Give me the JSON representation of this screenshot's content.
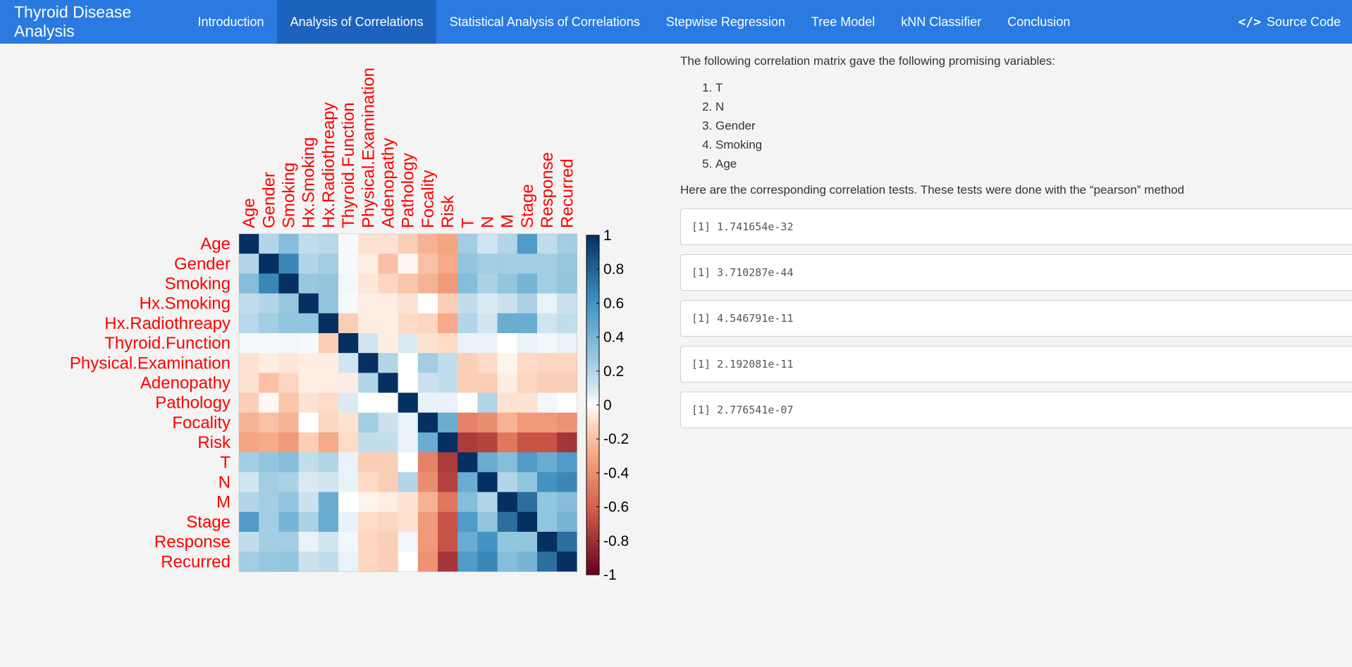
{
  "navbar": {
    "brand": "Thyroid Disease Analysis",
    "items": [
      {
        "label": "Introduction",
        "active": false
      },
      {
        "label": "Analysis of Correlations",
        "active": true
      },
      {
        "label": "Statistical Analysis of Correlations",
        "active": false
      },
      {
        "label": "Stepwise Regression",
        "active": false
      },
      {
        "label": "Tree Model",
        "active": false
      },
      {
        "label": "kNN Classifier",
        "active": false
      },
      {
        "label": "Conclusion",
        "active": false
      }
    ],
    "source_code_label": "Source Code",
    "source_code_icon": "code-icon",
    "colors": {
      "background": "#2a7ae2",
      "active": "#1d62bd"
    }
  },
  "content": {
    "intro_text": "The following correlation matrix gave the following promising variables:",
    "promising_variables": [
      "T",
      "N",
      "Gender",
      "Smoking",
      "Age"
    ],
    "tests_intro": "Here are the corresponding correlation tests. These tests were done with the “pearson” method",
    "test_outputs": [
      "[1] 1.741654e-32",
      "[1] 3.710287e-44",
      "[1] 4.546791e-11",
      "[1] 2.192081e-11",
      "[1] 2.776541e-07"
    ]
  },
  "chart_data": {
    "type": "heatmap",
    "variables": [
      "Age",
      "Gender",
      "Smoking",
      "Hx.Smoking",
      "Hx.Radiothreapy",
      "Thyroid.Function",
      "Physical.Examination",
      "Adenopathy",
      "Pathology",
      "Focality",
      "Risk",
      "T",
      "N",
      "M",
      "Stage",
      "Response",
      "Recurred"
    ],
    "matrix": [
      [
        1.0,
        0.2,
        0.35,
        0.15,
        0.18,
        0.02,
        -0.08,
        -0.08,
        -0.15,
        -0.25,
        -0.3,
        0.25,
        0.1,
        0.2,
        0.55,
        0.15,
        0.25
      ],
      [
        0.2,
        1.0,
        0.65,
        0.2,
        0.25,
        0.02,
        -0.05,
        -0.2,
        -0.02,
        -0.2,
        -0.28,
        0.3,
        0.25,
        0.25,
        0.25,
        0.25,
        0.28
      ],
      [
        0.35,
        0.65,
        1.0,
        0.28,
        0.3,
        0.03,
        -0.07,
        -0.12,
        -0.18,
        -0.25,
        -0.35,
        0.35,
        0.22,
        0.3,
        0.4,
        0.25,
        0.3
      ],
      [
        0.15,
        0.2,
        0.28,
        1.0,
        0.3,
        0.02,
        -0.05,
        -0.05,
        -0.08,
        0.0,
        -0.15,
        0.15,
        0.08,
        0.12,
        0.22,
        0.05,
        0.12
      ],
      [
        0.18,
        0.25,
        0.3,
        0.3,
        1.0,
        -0.15,
        -0.05,
        -0.05,
        -0.1,
        -0.12,
        -0.28,
        0.2,
        0.1,
        0.45,
        0.45,
        0.1,
        0.15
      ],
      [
        0.02,
        0.02,
        0.03,
        0.02,
        -0.15,
        1.0,
        0.1,
        -0.05,
        0.08,
        -0.08,
        -0.1,
        0.05,
        0.05,
        0.0,
        0.05,
        0.03,
        0.05
      ],
      [
        -0.08,
        -0.05,
        -0.07,
        -0.05,
        -0.05,
        0.1,
        1.0,
        0.2,
        0.0,
        0.25,
        0.15,
        -0.15,
        -0.1,
        -0.03,
        -0.1,
        -0.12,
        -0.12
      ],
      [
        -0.08,
        -0.2,
        -0.12,
        -0.05,
        -0.05,
        -0.05,
        0.2,
        1.0,
        0.0,
        0.12,
        0.15,
        -0.15,
        -0.15,
        -0.05,
        -0.12,
        -0.15,
        -0.15
      ],
      [
        -0.15,
        -0.02,
        -0.18,
        -0.08,
        -0.1,
        0.08,
        0.0,
        0.0,
        1.0,
        0.05,
        0.05,
        0.0,
        0.2,
        -0.08,
        -0.08,
        0.03,
        0.0
      ],
      [
        -0.25,
        -0.2,
        -0.25,
        0.0,
        -0.12,
        -0.08,
        0.25,
        0.12,
        0.05,
        1.0,
        0.45,
        -0.45,
        -0.4,
        -0.25,
        -0.35,
        -0.35,
        -0.38
      ],
      [
        -0.3,
        -0.28,
        -0.35,
        -0.15,
        -0.28,
        -0.1,
        0.15,
        0.15,
        0.05,
        0.45,
        1.0,
        -0.75,
        -0.72,
        -0.5,
        -0.65,
        -0.65,
        -0.78
      ],
      [
        0.25,
        0.3,
        0.35,
        0.15,
        0.2,
        0.05,
        -0.15,
        -0.15,
        0.0,
        -0.45,
        -0.75,
        1.0,
        0.45,
        0.35,
        0.55,
        0.45,
        0.55
      ],
      [
        0.1,
        0.25,
        0.22,
        0.08,
        0.1,
        0.05,
        -0.1,
        -0.15,
        0.2,
        -0.4,
        -0.72,
        0.45,
        1.0,
        0.2,
        0.3,
        0.6,
        0.65
      ],
      [
        0.2,
        0.25,
        0.3,
        0.12,
        0.45,
        0.0,
        -0.03,
        -0.05,
        -0.08,
        -0.25,
        -0.5,
        0.35,
        0.2,
        1.0,
        0.75,
        0.3,
        0.35
      ],
      [
        0.55,
        0.25,
        0.4,
        0.22,
        0.45,
        0.05,
        -0.1,
        -0.12,
        -0.08,
        -0.35,
        -0.65,
        0.55,
        0.3,
        0.75,
        1.0,
        0.3,
        0.4
      ],
      [
        0.15,
        0.25,
        0.25,
        0.05,
        0.1,
        0.03,
        -0.12,
        -0.15,
        0.03,
        -0.35,
        -0.65,
        0.45,
        0.6,
        0.3,
        0.3,
        1.0,
        0.75
      ],
      [
        0.25,
        0.28,
        0.3,
        0.12,
        0.15,
        0.05,
        -0.12,
        -0.15,
        0.0,
        -0.38,
        -0.78,
        0.55,
        0.65,
        0.35,
        0.4,
        0.75,
        1.0
      ]
    ],
    "color_scale": {
      "min": -1,
      "max": 1,
      "ticks": [
        "1",
        "0.8",
        "0.6",
        "0.4",
        "0.2",
        "0",
        "-0.2",
        "-0.4",
        "-0.6",
        "-0.8",
        "-1"
      ],
      "low_color": "#67001f",
      "mid_color": "#ffffff",
      "high_color": "#053061"
    },
    "label_color": "#ff0000"
  }
}
